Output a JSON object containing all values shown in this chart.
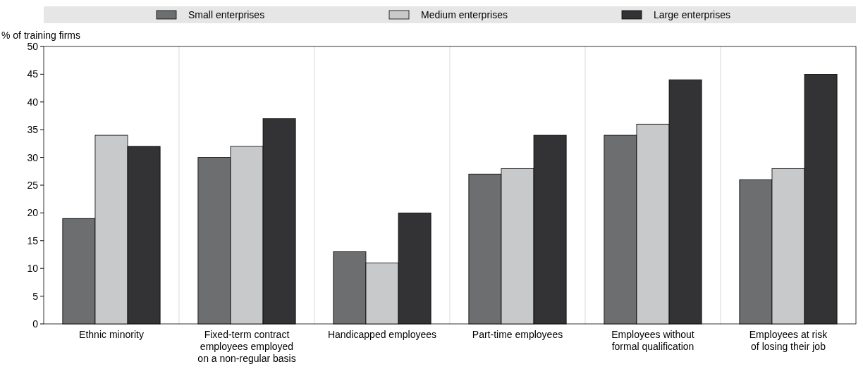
{
  "chart_data": {
    "type": "bar",
    "ylabel": "% of training firms",
    "categories": [
      "Ethnic minority",
      "Fixed-term contract\nemployees employed\non a non-regular basis",
      "Handicapped employees",
      "Part-time employees",
      "Employees without\nformal qualification",
      "Employees at risk\nof losing their job"
    ],
    "series": [
      {
        "name": "Small enterprises",
        "color": "#6d6e70",
        "values": [
          19,
          30,
          13,
          27,
          34,
          26
        ]
      },
      {
        "name": "Medium enterprises",
        "color": "#c8c9cb",
        "values": [
          34,
          32,
          11,
          28,
          36,
          28
        ]
      },
      {
        "name": "Large enterprises",
        "color": "#333335",
        "values": [
          32,
          37,
          20,
          34,
          44,
          45
        ]
      }
    ],
    "ylim": [
      0,
      50
    ],
    "yticks": [
      0,
      5,
      10,
      15,
      20,
      25,
      30,
      35,
      40,
      45,
      50
    ],
    "grid": "x",
    "legend": "top"
  }
}
